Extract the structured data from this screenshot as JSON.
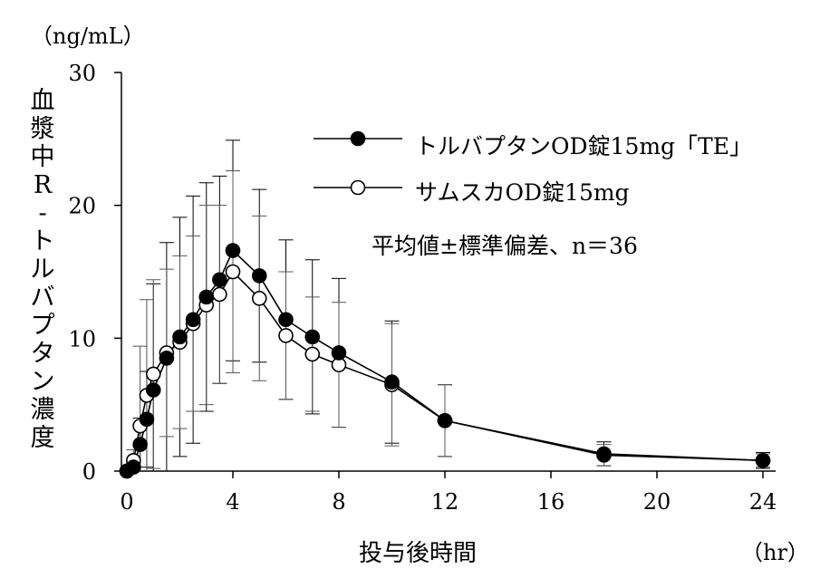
{
  "chart_data": {
    "type": "line",
    "y_unit_label": "（ng/mL）",
    "xlabel": "投与後時間",
    "x_unit_label": "（hr）",
    "ylabel": "血漿中R-トルバプタン濃度",
    "ylabel_chars": [
      "血",
      "漿",
      "中",
      "R",
      "-",
      "ト",
      "ル",
      "バ",
      "プ",
      "タ",
      "ン",
      "濃",
      "度"
    ],
    "note": "平均値±標準偏差、n＝36",
    "xlim": [
      0,
      24
    ],
    "ylim": [
      0,
      30
    ],
    "x_ticks": [
      0,
      4,
      8,
      12,
      16,
      20,
      24
    ],
    "y_ticks": [
      0,
      10,
      20,
      30
    ],
    "grid": false,
    "legend_position": "top-right",
    "series": [
      {
        "name": "トルバプタンOD錠15mg「TE」",
        "marker": "filled-circle",
        "color": "#000000",
        "points": [
          {
            "x": 0,
            "y": 0.0,
            "sd": 0.0
          },
          {
            "x": 0.25,
            "y": 0.3,
            "sd": 0.3
          },
          {
            "x": 0.5,
            "y": 2.0,
            "sd": 2.0
          },
          {
            "x": 0.75,
            "y": 3.9,
            "sd": 3.6
          },
          {
            "x": 1,
            "y": 6.1,
            "sd": 8.0
          },
          {
            "x": 1.5,
            "y": 8.5,
            "sd": 8.7
          },
          {
            "x": 2,
            "y": 10.1,
            "sd": 9.0
          },
          {
            "x": 2.5,
            "y": 11.4,
            "sd": 9.3
          },
          {
            "x": 3,
            "y": 13.1,
            "sd": 8.6
          },
          {
            "x": 3.5,
            "y": 14.4,
            "sd": 7.8
          },
          {
            "x": 4,
            "y": 16.6,
            "sd": 8.3
          },
          {
            "x": 5,
            "y": 14.7,
            "sd": 6.5
          },
          {
            "x": 6,
            "y": 11.4,
            "sd": 6.0
          },
          {
            "x": 7,
            "y": 10.1,
            "sd": 5.8
          },
          {
            "x": 8,
            "y": 8.9,
            "sd": 5.6
          },
          {
            "x": 10,
            "y": 6.7,
            "sd": 4.6
          },
          {
            "x": 12,
            "y": 3.8,
            "sd": 2.7
          },
          {
            "x": 18,
            "y": 1.3,
            "sd": 0.9
          },
          {
            "x": 24,
            "y": 0.8,
            "sd": 0.6
          }
        ]
      },
      {
        "name": "サムスカOD錠15mg",
        "marker": "open-circle",
        "color": "#000000",
        "points": [
          {
            "x": 0,
            "y": 0.0,
            "sd": 0.0
          },
          {
            "x": 0.25,
            "y": 0.8,
            "sd": 0.8
          },
          {
            "x": 0.5,
            "y": 3.4,
            "sd": 6.0
          },
          {
            "x": 0.75,
            "y": 5.7,
            "sd": 7.2
          },
          {
            "x": 1,
            "y": 7.3,
            "sd": 7.1
          },
          {
            "x": 1.5,
            "y": 8.9,
            "sd": 6.3
          },
          {
            "x": 2,
            "y": 9.7,
            "sd": 6.5
          },
          {
            "x": 2.5,
            "y": 11.1,
            "sd": 6.6
          },
          {
            "x": 3,
            "y": 12.5,
            "sd": 7.5
          },
          {
            "x": 3.5,
            "y": 13.3,
            "sd": 6.7
          },
          {
            "x": 4,
            "y": 15.0,
            "sd": 7.6
          },
          {
            "x": 5,
            "y": 13.0,
            "sd": 6.2
          },
          {
            "x": 6,
            "y": 10.2,
            "sd": 4.8
          },
          {
            "x": 7,
            "y": 8.8,
            "sd": 4.3
          },
          {
            "x": 8,
            "y": 8.0,
            "sd": 4.7
          },
          {
            "x": 10,
            "y": 6.5,
            "sd": 4.6
          },
          {
            "x": 12,
            "y": 3.8,
            "sd": 2.7
          },
          {
            "x": 18,
            "y": 1.2,
            "sd": 0.8
          },
          {
            "x": 24,
            "y": 0.8,
            "sd": 0.5
          }
        ]
      }
    ]
  }
}
